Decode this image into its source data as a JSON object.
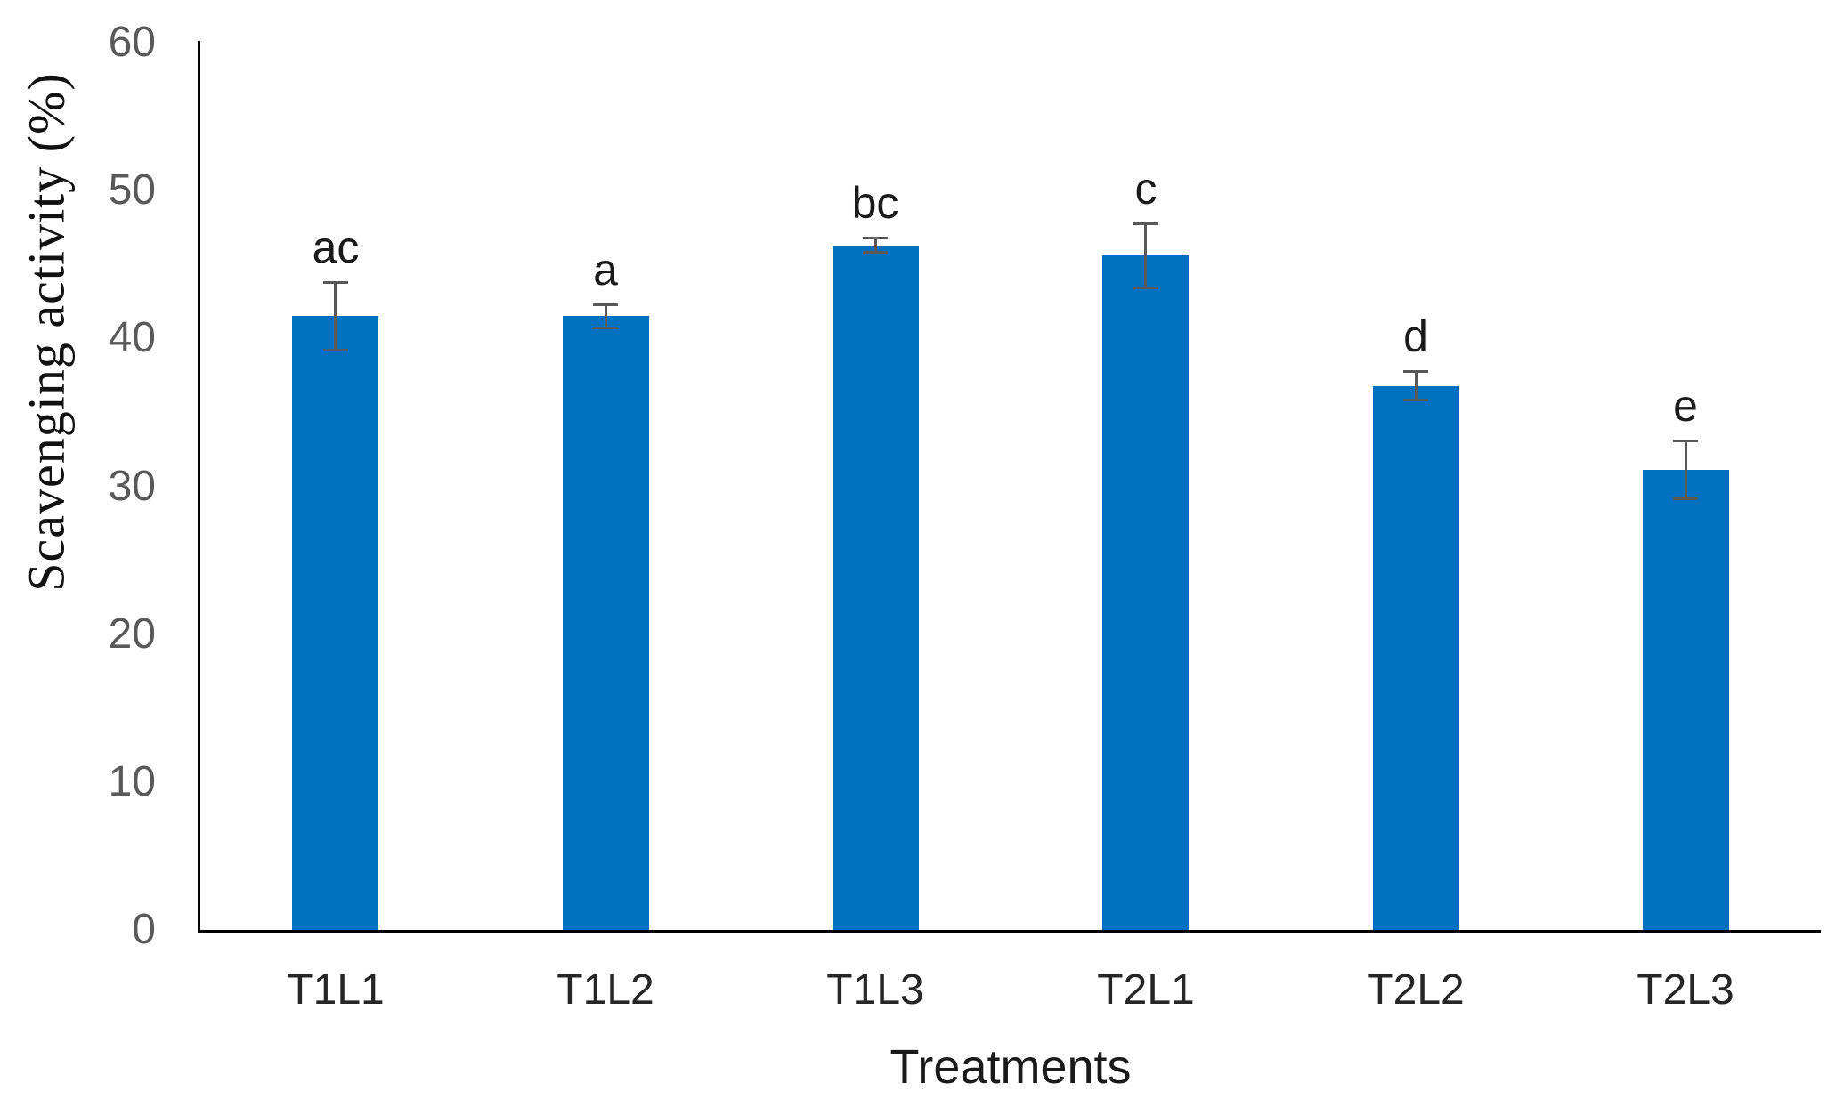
{
  "chart_data": {
    "type": "bar",
    "title": "",
    "categories": [
      "T1L1",
      "T1L2",
      "T1L3",
      "T2L1",
      "T2L2",
      "T2L3"
    ],
    "values": [
      41.5,
      41.5,
      46.3,
      45.6,
      36.8,
      31.1
    ],
    "errors": [
      2.3,
      0.8,
      0.5,
      2.2,
      1.0,
      2.0
    ],
    "sig_letters": [
      "ac",
      "a",
      "bc",
      "c",
      "d",
      "e"
    ],
    "xlabel": "Treatments",
    "ylabel": "Scavenging activity (%)",
    "ylim": [
      0,
      60
    ],
    "yticks": [
      0,
      10,
      20,
      30,
      40,
      50,
      60
    ],
    "grid": false,
    "legend_position": "none",
    "bar_color": "#0070C0",
    "error_bar_color": "#595959",
    "tick_label_color": "#595959",
    "axis_color": "#000000"
  }
}
